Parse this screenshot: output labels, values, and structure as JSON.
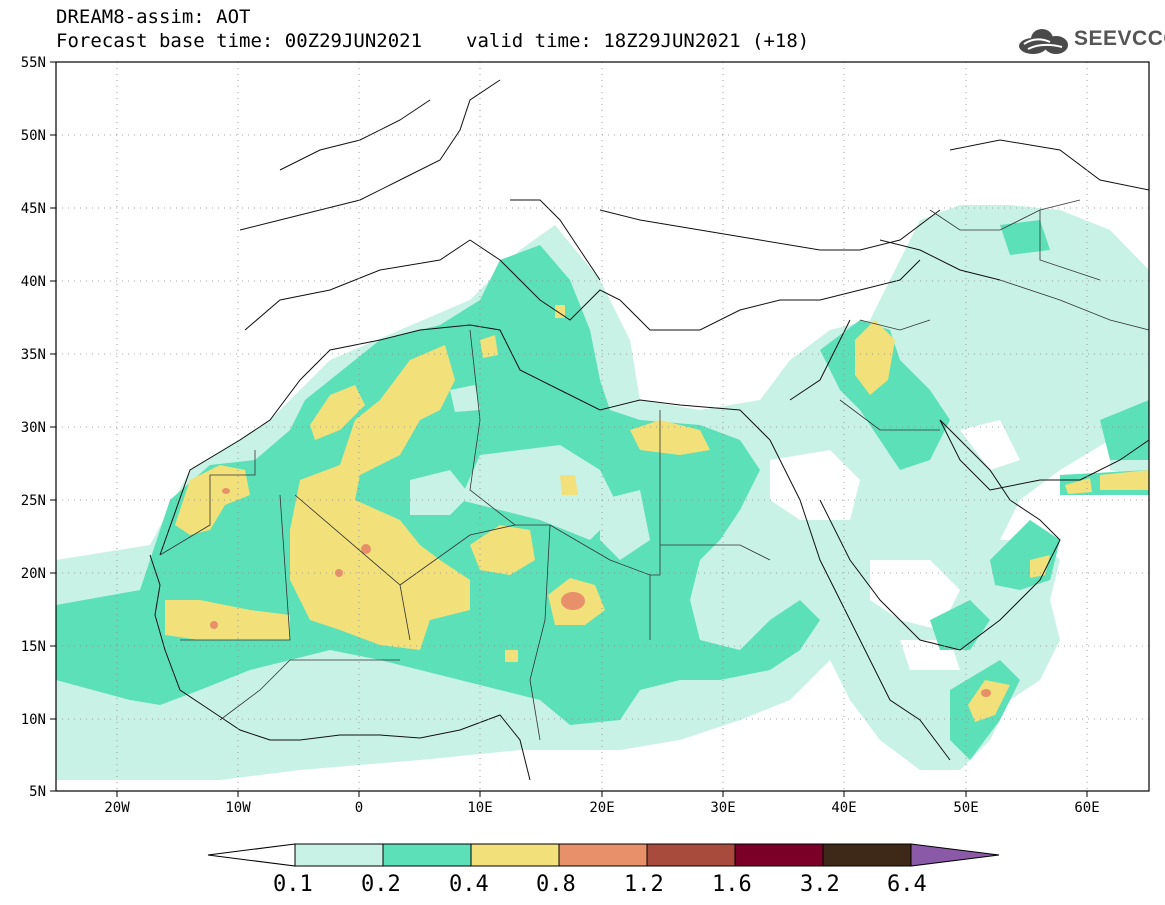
{
  "header": {
    "title_line1": "DREAM8-assim: AOT",
    "base_time": "Forecast base time: 00Z29JUN2021",
    "valid_time": "valid time: 18Z29JUN2021 (+18)"
  },
  "logo": {
    "text": "SEEVCCC",
    "icon": "cloud-logo-icon"
  },
  "axes": {
    "lat_labels": [
      "55N",
      "50N",
      "45N",
      "40N",
      "35N",
      "30N",
      "25N",
      "20N",
      "15N",
      "10N",
      "5N"
    ],
    "lon_labels": [
      "20W",
      "10W",
      "0",
      "10E",
      "20E",
      "30E",
      "40E",
      "50E",
      "60E"
    ]
  },
  "colorbar": {
    "labels": [
      "0.1",
      "0.2",
      "0.4",
      "0.8",
      "1.2",
      "1.6",
      "3.2",
      "6.4"
    ],
    "colors": [
      "#ffffff",
      "#c8f2e6",
      "#5ce0b8",
      "#f2e07a",
      "#e8906a",
      "#a84a3c",
      "#7a0028",
      "#3e2818",
      "#8a5aa8"
    ]
  },
  "palette": {
    "light": "#c8f2e6",
    "mid": "#5ce0b8",
    "yellow": "#f2e07a",
    "orange": "#e8906a"
  }
}
